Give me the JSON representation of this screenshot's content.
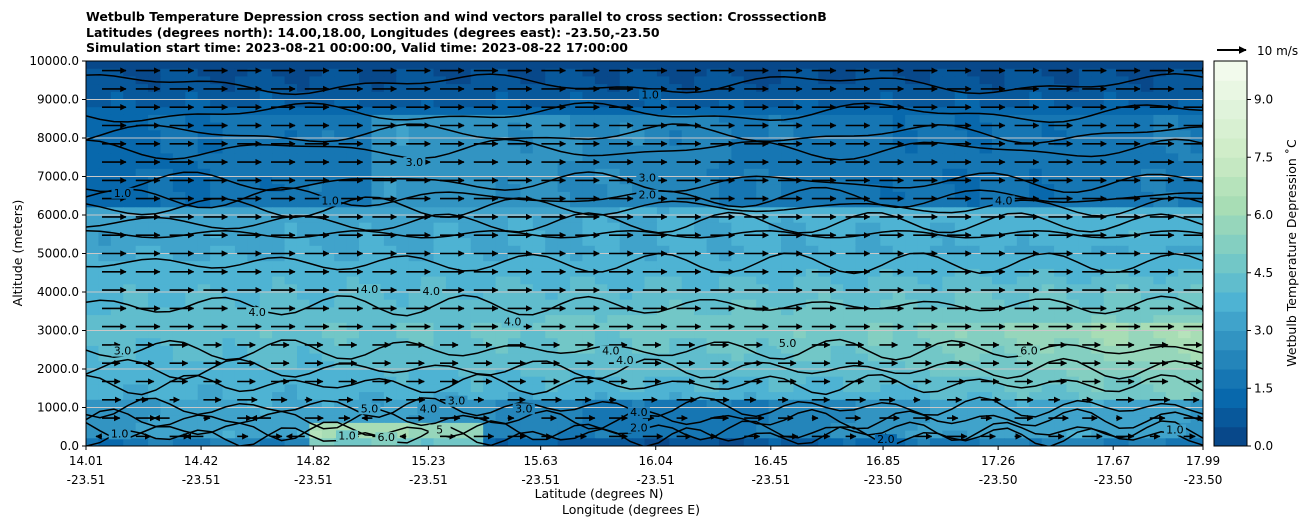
{
  "chart_data": {
    "type": "heatmap",
    "title_lines": [
      "Wetbulb Temperature Depression cross section and wind vectors parallel to cross section: CrosssectionB",
      "Latitudes (degrees north): 14.00,18.00, Longitudes (degrees east): -23.50,-23.50",
      "Simulation start time: 2023-08-21 00:00:00, Valid time: 2023-08-22 17:00:00"
    ],
    "ylabel": "Altitude (meters)",
    "xlabel_lat": "Latitude (degrees N)",
    "xlabel_lon": "Longitude (degrees E)",
    "ylim": [
      0,
      10000
    ],
    "y_ticks": [
      "0.0",
      "1000.0",
      "2000.0",
      "3000.0",
      "4000.0",
      "5000.0",
      "6000.0",
      "7000.0",
      "8000.0",
      "9000.0",
      "10000.0"
    ],
    "x_ticks": [
      {
        "lat": "14.01",
        "lon": "-23.51"
      },
      {
        "lat": "14.42",
        "lon": "-23.51"
      },
      {
        "lat": "14.82",
        "lon": "-23.51"
      },
      {
        "lat": "15.23",
        "lon": "-23.51"
      },
      {
        "lat": "15.63",
        "lon": "-23.51"
      },
      {
        "lat": "16.04",
        "lon": "-23.51"
      },
      {
        "lat": "16.45",
        "lon": "-23.51"
      },
      {
        "lat": "16.85",
        "lon": "-23.50"
      },
      {
        "lat": "17.26",
        "lon": "-23.50"
      },
      {
        "lat": "17.67",
        "lon": "-23.50"
      },
      {
        "lat": "17.99",
        "lon": "-23.50"
      }
    ],
    "colorbar": {
      "label": "Wetbulb Temperature Depression ˚C",
      "min": 0,
      "max": 10,
      "ticks": [
        "0.0",
        "1.5",
        "3.0",
        "4.5",
        "6.0",
        "7.5",
        "9.0"
      ],
      "colormap": [
        "#084081",
        "#0868ac",
        "#2b8cbe",
        "#4eb3d3",
        "#7bccc4",
        "#a8ddb5",
        "#ccebc5",
        "#e0f3db",
        "#f7fcf0"
      ]
    },
    "quiver_key": {
      "label": "10 m/s",
      "speed": 10
    },
    "contour_labels": [
      {
        "text": "1.0",
        "lat": 16.02,
        "alt": 9050
      },
      {
        "text": "1.0",
        "lat": 14.14,
        "alt": 6500
      },
      {
        "text": "1.0",
        "lat": 14.88,
        "alt": 6300
      },
      {
        "text": "3.0",
        "lat": 15.18,
        "alt": 7300
      },
      {
        "text": "3.0",
        "lat": 16.01,
        "alt": 6900
      },
      {
        "text": "2.0",
        "lat": 16.01,
        "alt": 6450
      },
      {
        "text": "4.0",
        "lat": 17.28,
        "alt": 6300
      },
      {
        "text": "4.0",
        "lat": 15.02,
        "alt": 4000
      },
      {
        "text": "4.0",
        "lat": 15.24,
        "alt": 3950
      },
      {
        "text": "4.0",
        "lat": 14.62,
        "alt": 3400
      },
      {
        "text": "4.0",
        "lat": 15.53,
        "alt": 3150
      },
      {
        "text": "3.0",
        "lat": 14.14,
        "alt": 2400
      },
      {
        "text": "4.0",
        "lat": 15.88,
        "alt": 2400
      },
      {
        "text": "4.0",
        "lat": 15.93,
        "alt": 2150
      },
      {
        "text": "5.0",
        "lat": 16.51,
        "alt": 2600
      },
      {
        "text": "6.0",
        "lat": 17.37,
        "alt": 2400
      },
      {
        "text": "3.0",
        "lat": 15.33,
        "alt": 1100
      },
      {
        "text": "3.0",
        "lat": 15.57,
        "alt": 900
      },
      {
        "text": "4.0",
        "lat": 15.23,
        "alt": 900
      },
      {
        "text": "4.0",
        "lat": 15.98,
        "alt": 800
      },
      {
        "text": "5.0",
        "lat": 15.02,
        "alt": 900
      },
      {
        "text": "5",
        "lat": 15.27,
        "alt": 350
      },
      {
        "text": "6.0",
        "lat": 15.08,
        "alt": 150
      },
      {
        "text": "2.0",
        "lat": 15.98,
        "alt": 400
      },
      {
        "text": "1.0",
        "lat": 14.94,
        "alt": 200
      },
      {
        "text": "1.0",
        "lat": 14.13,
        "alt": 250
      },
      {
        "text": "2.0",
        "lat": 16.86,
        "alt": 100
      },
      {
        "text": "1.0",
        "lat": 17.89,
        "alt": 350
      }
    ]
  }
}
